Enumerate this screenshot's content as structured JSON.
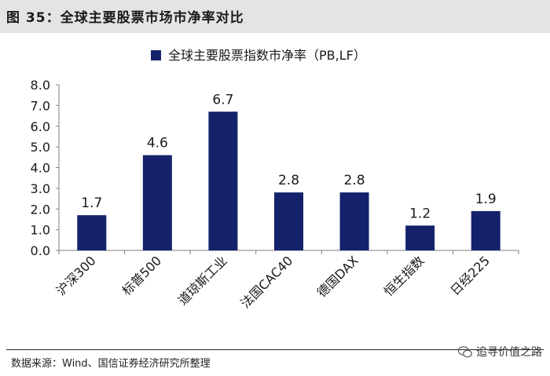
{
  "header": {
    "figure_title": "图 35：全球主要股票市场市净率对比"
  },
  "chart_data": {
    "type": "bar",
    "title": "",
    "legend": "全球主要股票指数市净率（PB,LF）",
    "legend_position": "top-center",
    "categories": [
      "沪深300",
      "标普500",
      "道琼斯工业",
      "法国CAC40",
      "德国DAX",
      "恒生指数",
      "日经225"
    ],
    "series": [
      {
        "name": "全球主要股票指数市净率（PB,LF）",
        "values": [
          1.7,
          4.6,
          6.7,
          2.8,
          2.8,
          1.2,
          1.9
        ],
        "color": "#14226b"
      }
    ],
    "data_labels": [
      "1.7",
      "4.6",
      "6.7",
      "2.8",
      "2.8",
      "1.2",
      "1.9"
    ],
    "y_ticks": [
      "8.0",
      "7.0",
      "6.0",
      "5.0",
      "4.0",
      "3.0",
      "2.0",
      "1.0",
      "0.0"
    ],
    "ylim": [
      0,
      8
    ],
    "xlabel": "",
    "ylabel": "",
    "grid": false
  },
  "footer": {
    "source": "数据来源：Wind、国信证券经济研究所整理",
    "watermark": "追寻价值之路"
  }
}
